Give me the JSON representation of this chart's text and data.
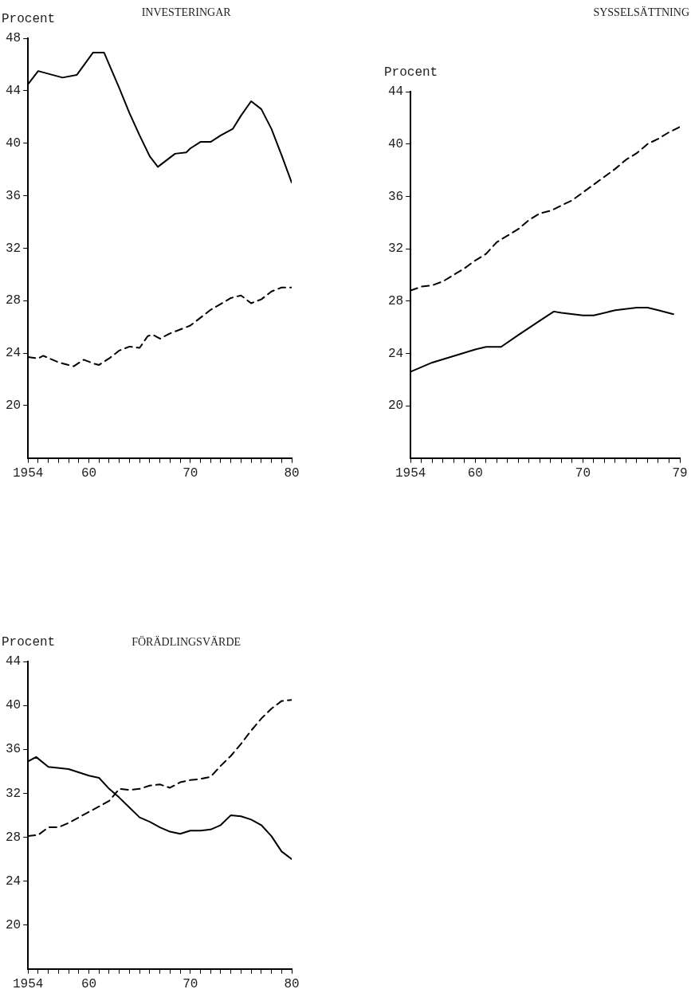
{
  "chart_data": [
    {
      "type": "line",
      "title": "INVESTERINGAR",
      "ylabel": "Procent",
      "xlim": [
        1954,
        1980
      ],
      "ylim": [
        16,
        48
      ],
      "yticks": [
        20,
        24,
        28,
        32,
        36,
        40,
        44,
        48
      ],
      "xticks": [
        {
          "value": 1954,
          "label": "1954"
        },
        {
          "value": 1955,
          "label": null
        },
        {
          "value": 1956,
          "label": null
        },
        {
          "value": 1957,
          "label": null
        },
        {
          "value": 1958,
          "label": null
        },
        {
          "value": 1959,
          "label": null
        },
        {
          "value": 1960,
          "label": "60"
        },
        {
          "value": 1961,
          "label": null
        },
        {
          "value": 1962,
          "label": null
        },
        {
          "value": 1963,
          "label": null
        },
        {
          "value": 1964,
          "label": null
        },
        {
          "value": 1965,
          "label": null
        },
        {
          "value": 1966,
          "label": null
        },
        {
          "value": 1967,
          "label": null
        },
        {
          "value": 1968,
          "label": null
        },
        {
          "value": 1969,
          "label": null
        },
        {
          "value": 1970,
          "label": "70"
        },
        {
          "value": 1971,
          "label": null
        },
        {
          "value": 1972,
          "label": null
        },
        {
          "value": 1973,
          "label": null
        },
        {
          "value": 1974,
          "label": null
        },
        {
          "value": 1975,
          "label": null
        },
        {
          "value": 1976,
          "label": null
        },
        {
          "value": 1977,
          "label": null
        },
        {
          "value": 1978,
          "label": null
        },
        {
          "value": 1979,
          "label": null
        },
        {
          "value": 1980,
          "label": "80"
        }
      ],
      "grid": false,
      "marker": "none",
      "series": [
        {
          "color": "#000000",
          "line_style": "solid",
          "x": [
            1954,
            1955,
            1957.4,
            1958.8,
            1960.4,
            1961.5,
            1963,
            1964,
            1965,
            1966,
            1966.8,
            1968.5,
            1969.6,
            1970,
            1971,
            1972,
            1973,
            1974.2,
            1975,
            1976,
            1977,
            1978,
            1979,
            1980
          ],
          "values": [
            44.5,
            45.5,
            45.0,
            45.2,
            46.9,
            46.9,
            44.2,
            42.3,
            40.6,
            39.0,
            38.2,
            39.2,
            39.3,
            39.6,
            40.1,
            40.1,
            40.6,
            41.1,
            42.1,
            43.2,
            42.6,
            41.1,
            39.1,
            37.0
          ]
        },
        {
          "color": "#000000",
          "line_style": "dashed",
          "x": [
            1954,
            1955,
            1955.5,
            1957,
            1958,
            1958.5,
            1959.5,
            1960.5,
            1961,
            1962,
            1963,
            1964,
            1965,
            1965.8,
            1966.3,
            1967,
            1968,
            1970,
            1972,
            1974,
            1975,
            1976,
            1977,
            1978,
            1979,
            1980
          ],
          "values": [
            23.7,
            23.6,
            23.8,
            23.3,
            23.1,
            23.0,
            23.5,
            23.2,
            23.1,
            23.6,
            24.2,
            24.5,
            24.4,
            25.3,
            25.4,
            25.1,
            25.5,
            26.1,
            27.3,
            28.2,
            28.4,
            27.8,
            28.1,
            28.7,
            29.0,
            29.0
          ]
        }
      ]
    },
    {
      "type": "line",
      "title": "SYSSELSÄTTNING",
      "ylabel": "Procent",
      "xlim": [
        1954,
        1979
      ],
      "ylim": [
        16,
        44
      ],
      "yticks": [
        20,
        24,
        28,
        32,
        36,
        40,
        44
      ],
      "xticks": [
        {
          "value": 1954,
          "label": "1954"
        },
        {
          "value": 1955,
          "label": null
        },
        {
          "value": 1956,
          "label": null
        },
        {
          "value": 1957,
          "label": null
        },
        {
          "value": 1958,
          "label": null
        },
        {
          "value": 1959,
          "label": null
        },
        {
          "value": 1960,
          "label": "60"
        },
        {
          "value": 1961,
          "label": null
        },
        {
          "value": 1962,
          "label": null
        },
        {
          "value": 1963,
          "label": null
        },
        {
          "value": 1964,
          "label": null
        },
        {
          "value": 1965,
          "label": null
        },
        {
          "value": 1966,
          "label": null
        },
        {
          "value": 1967,
          "label": null
        },
        {
          "value": 1968,
          "label": null
        },
        {
          "value": 1969,
          "label": null
        },
        {
          "value": 1970,
          "label": "70"
        },
        {
          "value": 1971,
          "label": null
        },
        {
          "value": 1972,
          "label": null
        },
        {
          "value": 1973,
          "label": null
        },
        {
          "value": 1974,
          "label": null
        },
        {
          "value": 1975,
          "label": null
        },
        {
          "value": 1976,
          "label": null
        },
        {
          "value": 1977,
          "label": null
        },
        {
          "value": 1978,
          "label": null
        },
        {
          "value": 1979,
          "label": "79"
        }
      ],
      "grid": false,
      "marker": "none",
      "series": [
        {
          "color": "#000000",
          "line_style": "dashed",
          "x": [
            1954,
            1955,
            1956,
            1957,
            1958,
            1959,
            1960,
            1961,
            1962,
            1963,
            1964,
            1965,
            1966,
            1967,
            1968,
            1969,
            1970,
            1971,
            1972,
            1973,
            1974,
            1975,
            1976,
            1977,
            1978,
            1979
          ],
          "values": [
            28.8,
            29.1,
            29.2,
            29.5,
            30.0,
            30.5,
            31.1,
            31.6,
            32.5,
            33.0,
            33.5,
            34.2,
            34.7,
            34.9,
            35.3,
            35.7,
            36.3,
            36.9,
            37.5,
            38.1,
            38.8,
            39.3,
            40.0,
            40.4,
            40.9,
            41.3
          ]
        },
        {
          "color": "#000000",
          "line_style": "solid",
          "x": [
            1954,
            1956,
            1958,
            1960,
            1961,
            1962.4,
            1964,
            1966,
            1967.3,
            1968,
            1970,
            1971,
            1973,
            1975,
            1976,
            1977,
            1978.4
          ],
          "values": [
            22.6,
            23.3,
            23.8,
            24.3,
            24.5,
            24.5,
            25.4,
            26.5,
            27.2,
            27.1,
            26.9,
            26.9,
            27.3,
            27.5,
            27.5,
            27.3,
            27.0
          ]
        }
      ]
    },
    {
      "type": "line",
      "title": "FÖRÄDLINGSVÄRDE",
      "ylabel": "Procent",
      "xlim": [
        1954,
        1980
      ],
      "ylim": [
        16,
        44
      ],
      "yticks": [
        20,
        24,
        28,
        32,
        36,
        40,
        44
      ],
      "xticks": [
        {
          "value": 1954,
          "label": "1954"
        },
        {
          "value": 1955,
          "label": null
        },
        {
          "value": 1956,
          "label": null
        },
        {
          "value": 1957,
          "label": null
        },
        {
          "value": 1958,
          "label": null
        },
        {
          "value": 1959,
          "label": null
        },
        {
          "value": 1960,
          "label": "60"
        },
        {
          "value": 1961,
          "label": null
        },
        {
          "value": 1962,
          "label": null
        },
        {
          "value": 1963,
          "label": null
        },
        {
          "value": 1964,
          "label": null
        },
        {
          "value": 1965,
          "label": null
        },
        {
          "value": 1966,
          "label": null
        },
        {
          "value": 1967,
          "label": null
        },
        {
          "value": 1968,
          "label": null
        },
        {
          "value": 1969,
          "label": null
        },
        {
          "value": 1970,
          "label": "70"
        },
        {
          "value": 1971,
          "label": null
        },
        {
          "value": 1972,
          "label": null
        },
        {
          "value": 1973,
          "label": null
        },
        {
          "value": 1974,
          "label": null
        },
        {
          "value": 1975,
          "label": null
        },
        {
          "value": 1976,
          "label": null
        },
        {
          "value": 1977,
          "label": null
        },
        {
          "value": 1978,
          "label": null
        },
        {
          "value": 1979,
          "label": null
        },
        {
          "value": 1980,
          "label": "80"
        }
      ],
      "grid": false,
      "marker": "none",
      "series": [
        {
          "color": "#000000",
          "line_style": "solid",
          "x": [
            1954,
            1954.8,
            1956,
            1958,
            1960,
            1961,
            1962,
            1963,
            1964,
            1965,
            1966,
            1967,
            1968,
            1969,
            1970,
            1971,
            1972,
            1973,
            1974,
            1975,
            1976,
            1977,
            1978,
            1979,
            1980
          ],
          "values": [
            34.9,
            35.3,
            34.4,
            34.2,
            33.6,
            33.4,
            32.4,
            31.6,
            30.7,
            29.8,
            29.4,
            28.9,
            28.5,
            28.3,
            28.6,
            28.6,
            28.7,
            29.1,
            30.0,
            29.9,
            29.6,
            29.1,
            28.1,
            26.7,
            26.0
          ]
        },
        {
          "color": "#000000",
          "line_style": "dashed",
          "x": [
            1954,
            1955,
            1956,
            1957,
            1958,
            1959,
            1960,
            1961,
            1962,
            1963,
            1964,
            1965,
            1966,
            1967,
            1968,
            1969,
            1970,
            1971,
            1972,
            1973,
            1974,
            1975,
            1976,
            1977,
            1978,
            1979,
            1980
          ],
          "values": [
            28.1,
            28.2,
            28.9,
            28.9,
            29.3,
            29.8,
            30.3,
            30.8,
            31.3,
            32.4,
            32.3,
            32.4,
            32.7,
            32.8,
            32.5,
            33.0,
            33.2,
            33.3,
            33.5,
            34.5,
            35.4,
            36.5,
            37.7,
            38.8,
            39.7,
            40.4,
            40.5
          ]
        }
      ]
    }
  ]
}
